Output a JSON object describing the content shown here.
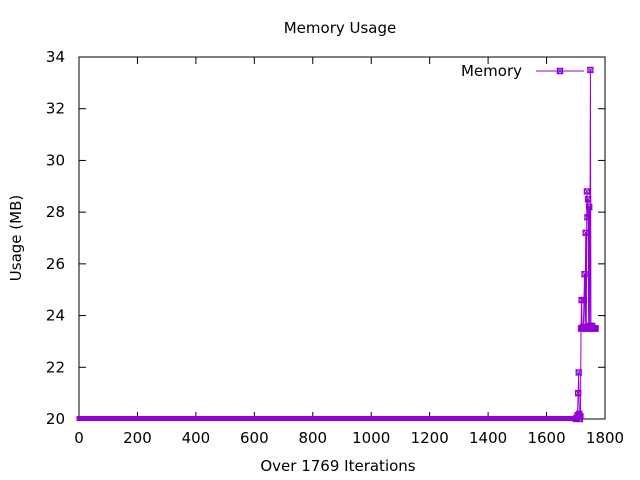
{
  "chart_data": {
    "type": "line",
    "title": "Memory Usage",
    "xlabel": "Over 1769 Iterations",
    "ylabel": "Usage (MB)",
    "xlim": [
      0,
      1800
    ],
    "ylim": [
      20,
      34
    ],
    "x_ticks": [
      0,
      200,
      400,
      600,
      800,
      1000,
      1200,
      1400,
      1600,
      1800
    ],
    "y_ticks": [
      20,
      22,
      24,
      26,
      28,
      30,
      32,
      34
    ],
    "grid": false,
    "legend_position": "top-right",
    "series": [
      {
        "name": "Memory",
        "color": "#9400d3",
        "marker": "square-cross",
        "baseline_segment": {
          "x_from": 0,
          "x_to": 1700,
          "y": 20.0
        },
        "points": [
          [
            1700,
            20.0
          ],
          [
            1703,
            20.05
          ],
          [
            1706,
            20.15
          ],
          [
            1708,
            21.0
          ],
          [
            1710,
            21.8
          ],
          [
            1712,
            20.2
          ],
          [
            1714,
            20.0
          ],
          [
            1716,
            20.1
          ],
          [
            1718,
            23.5
          ],
          [
            1720,
            24.6
          ],
          [
            1722,
            23.5
          ],
          [
            1724,
            23.55
          ],
          [
            1726,
            23.5
          ],
          [
            1728,
            24.6
          ],
          [
            1730,
            25.6
          ],
          [
            1732,
            23.5
          ],
          [
            1734,
            27.2
          ],
          [
            1736,
            23.5
          ],
          [
            1738,
            28.8
          ],
          [
            1740,
            27.8
          ],
          [
            1742,
            28.5
          ],
          [
            1744,
            23.5
          ],
          [
            1746,
            28.2
          ],
          [
            1748,
            23.6
          ],
          [
            1750,
            33.5
          ],
          [
            1752,
            23.5
          ],
          [
            1754,
            23.5
          ],
          [
            1756,
            23.6
          ],
          [
            1758,
            23.5
          ],
          [
            1760,
            23.5
          ],
          [
            1762,
            23.5
          ],
          [
            1764,
            23.5
          ],
          [
            1766,
            23.5
          ],
          [
            1768,
            23.5
          ]
        ]
      }
    ]
  }
}
